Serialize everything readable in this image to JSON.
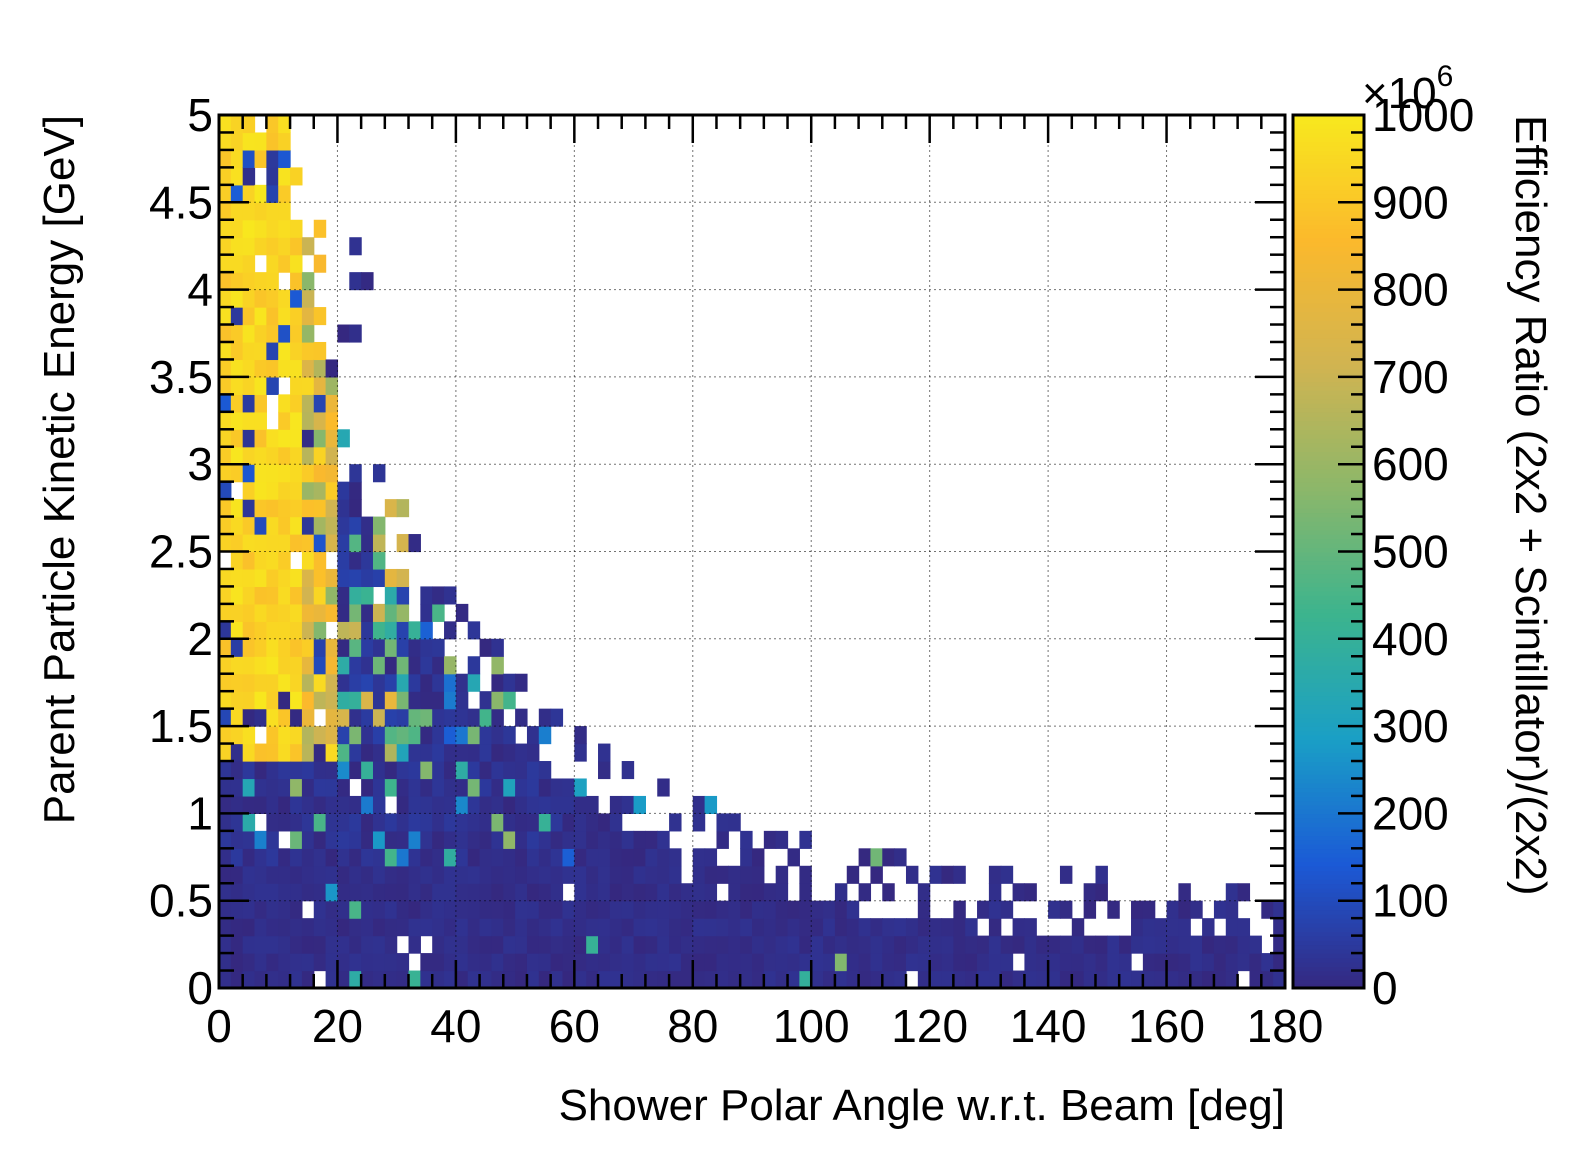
{
  "chart_data": {
    "type": "heatmap",
    "xlabel": "Shower Polar Angle w.r.t. Beam [deg]",
    "ylabel": "Parent Particle Kinetic Energy [GeV]",
    "zlabel": "Efficiency Ratio (2x2 + Scintillator)/(2x2)",
    "xlim": [
      0,
      180
    ],
    "ylim": [
      0,
      5
    ],
    "zlim": [
      0,
      1000
    ],
    "x_ticks": [
      "0",
      "20",
      "40",
      "60",
      "80",
      "100",
      "120",
      "140",
      "160",
      "180"
    ],
    "y_ticks": [
      "0",
      "0.5",
      "1",
      "1.5",
      "2",
      "2.5",
      "3",
      "3.5",
      "4",
      "4.5",
      "5"
    ],
    "z_ticks": [
      "0",
      "100",
      "200",
      "300",
      "400",
      "500",
      "600",
      "700",
      "800",
      "900",
      "1000"
    ],
    "z_multiplier_label": "×10",
    "z_multiplier_exponent": "6",
    "grid": true,
    "bins": {
      "x_count": 90,
      "y_count": 50,
      "x_width_deg": 2,
      "y_width_gev": 0.1
    },
    "populated_region": {
      "description_points_x_deg": [
        0,
        10,
        20,
        30,
        40,
        50,
        60,
        70,
        80,
        90,
        100,
        110,
        120,
        130,
        140,
        150,
        160,
        170,
        180
      ],
      "upper_energy_gev": [
        5.0,
        5.0,
        3.2,
        2.5,
        2.0,
        1.6,
        1.25,
        1.0,
        0.85,
        0.7,
        0.65,
        0.55,
        0.5,
        0.45,
        0.45,
        0.4,
        0.4,
        0.38,
        0.3
      ]
    },
    "colormap": [
      "#35287f",
      "#1b5ad6",
      "#1a9fc6",
      "#3cb48e",
      "#8bb76a",
      "#d1b451",
      "#fbb92c",
      "#f8e81e"
    ],
    "value_description": "Low-energy / wide-angle region ≈ 0; high-energy forward region (small angle) ≈ 900–1000 ×10^6"
  }
}
